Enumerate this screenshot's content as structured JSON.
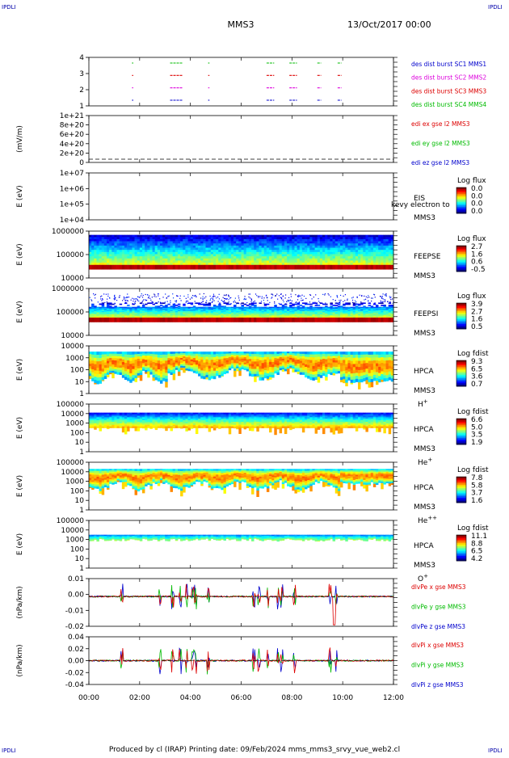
{
  "header": {
    "corner_tl": "IPDLI",
    "corner_tr": "IPDLI",
    "corner_bl": "IPDLI",
    "corner_br": "IPDLI",
    "spacecraft": "MMS3",
    "date": "13/Oct/2017 00:00"
  },
  "footer": {
    "text": "Produced by cl (IRAP)   Printing date: 09/Feb/2024   mms_mms3_srvy_vue_web2.cl"
  },
  "colors": {
    "red": "#dd0000",
    "green": "#00bb00",
    "blue": "#0000cc",
    "magenta": "#dd00dd"
  },
  "time_axis": {
    "ticks": [
      "00:00",
      "02:00",
      "04:00",
      "06:00",
      "08:00",
      "10:00",
      "12:00"
    ],
    "range_hours": [
      0,
      12
    ]
  },
  "chart_data": [
    {
      "id": "burst",
      "type": "scatter",
      "yticks": [
        "4",
        "3",
        "2",
        "1"
      ],
      "series": [
        {
          "name": "des dist burst SC1 MMS1",
          "level": 1,
          "color": "#0000cc"
        },
        {
          "name": "des dist burst SC2 MMS2",
          "level": 2,
          "color": "#dd00dd"
        },
        {
          "name": "des dist burst SC3 MMS3",
          "level": 3,
          "color": "#dd0000"
        },
        {
          "name": "des dist burst SC4 MMS4",
          "level": 4,
          "color": "#00bb00"
        }
      ],
      "intervals_hours": [
        [
          1.7,
          1.75
        ],
        [
          3.2,
          3.7
        ],
        [
          4.7,
          4.75
        ],
        [
          7.0,
          7.3
        ],
        [
          7.9,
          8.2
        ],
        [
          9.0,
          9.15
        ],
        [
          9.8,
          9.95
        ]
      ]
    },
    {
      "id": "edi",
      "type": "line",
      "ylabel": "(mV/m)",
      "yticks": [
        "1e+21",
        "8e+20",
        "6e+20",
        "4e+20",
        "2e+20",
        "0"
      ],
      "series": [
        {
          "name": "edi ex gse l2 MMS3",
          "color": "#dd0000"
        },
        {
          "name": "edi ey gse l2 MMS3",
          "color": "#00bb00"
        },
        {
          "name": "edi ez gse l2 MMS3",
          "color": "#0000cc"
        }
      ]
    },
    {
      "id": "eis",
      "type": "heatmap",
      "ylabel": "E (eV)",
      "yticks": [
        "1e+07",
        "1e+06",
        "1e+05",
        "1e+04"
      ],
      "instrument": "EIS",
      "mission": "MMS3",
      "overlap": "kevy electron to",
      "colorbar_title": "Log flux",
      "colorbar_ticks": [
        "0.0",
        "0.0",
        "0.0",
        "0.0"
      ]
    },
    {
      "id": "feepse",
      "type": "heatmap",
      "ylabel": "E (eV)",
      "yticks": [
        "1000000",
        "100000",
        "10000"
      ],
      "instrument": "FEEPSE",
      "mission": "MMS3",
      "colorbar_title": "Log flux",
      "colorbar_ticks": [
        "2.7",
        "1.6",
        "0.6",
        "-0.5"
      ]
    },
    {
      "id": "feepsi",
      "type": "heatmap",
      "ylabel": "E (eV)",
      "yticks": [
        "1000000",
        "100000",
        "10000"
      ],
      "instrument": "FEEPSI",
      "mission": "MMS3",
      "colorbar_title": "Log flux",
      "colorbar_ticks": [
        "3.9",
        "2.7",
        "1.6",
        "0.5"
      ]
    },
    {
      "id": "hpca_h",
      "type": "heatmap",
      "ylabel": "E (eV)",
      "yticks": [
        "10000",
        "1000",
        "100",
        "10",
        "1"
      ],
      "instrument": "HPCA",
      "mission": "MMS3",
      "species": "H",
      "charge": "+",
      "colorbar_title": "Log fdist",
      "colorbar_ticks": [
        "9.3",
        "6.5",
        "3.6",
        "0.7"
      ]
    },
    {
      "id": "hpca_he",
      "type": "heatmap",
      "ylabel": "E (eV)",
      "yticks": [
        "100000",
        "10000",
        "1000",
        "100",
        "10",
        "1"
      ],
      "instrument": "HPCA",
      "mission": "MMS3",
      "species": "He",
      "charge": "+",
      "colorbar_title": "Log fdist",
      "colorbar_ticks": [
        "6.6",
        "5.0",
        "3.5",
        "1.9"
      ]
    },
    {
      "id": "hpca_hepp",
      "type": "heatmap",
      "ylabel": "E (eV)",
      "yticks": [
        "100000",
        "10000",
        "1000",
        "100",
        "10",
        "1"
      ],
      "instrument": "HPCA",
      "mission": "MMS3",
      "species": "He",
      "charge": "++",
      "colorbar_title": "Log fdist",
      "colorbar_ticks": [
        "7.8",
        "5.8",
        "3.7",
        "1.6"
      ]
    },
    {
      "id": "hpca_o",
      "type": "heatmap",
      "ylabel": "E (eV)",
      "yticks": [
        "100000",
        "10000",
        "1000",
        "100",
        "10",
        "1"
      ],
      "instrument": "HPCA",
      "mission": "MMS3",
      "species": "O",
      "charge": "+",
      "colorbar_title": "Log fdist",
      "colorbar_ticks": [
        "11.1",
        "8.8",
        "6.5",
        "4.2"
      ]
    },
    {
      "id": "dlvpe",
      "type": "line",
      "ylabel": "(nPa/km)",
      "yticks": [
        "0.01",
        "0.00",
        "-0.01",
        "-0.02"
      ],
      "ylim": [
        -0.025,
        0.015
      ],
      "series": [
        {
          "name": "dlvPe x gse MMS3",
          "color": "#dd0000"
        },
        {
          "name": "dlvPe y gse MMS3",
          "color": "#00bb00"
        },
        {
          "name": "dlvPe z gse MMS3",
          "color": "#0000cc"
        }
      ]
    },
    {
      "id": "dlvpi",
      "type": "line",
      "ylabel": "(nPa/km)",
      "yticks": [
        "0.04",
        "0.02",
        "0.00",
        "-0.02",
        "-0.04"
      ],
      "ylim": [
        -0.05,
        0.05
      ],
      "series": [
        {
          "name": "dlvPi x gse MMS3",
          "color": "#dd0000"
        },
        {
          "name": "dlvPi y gse MMS3",
          "color": "#00bb00"
        },
        {
          "name": "dlvPi z gse MMS3",
          "color": "#0000cc"
        }
      ]
    }
  ]
}
